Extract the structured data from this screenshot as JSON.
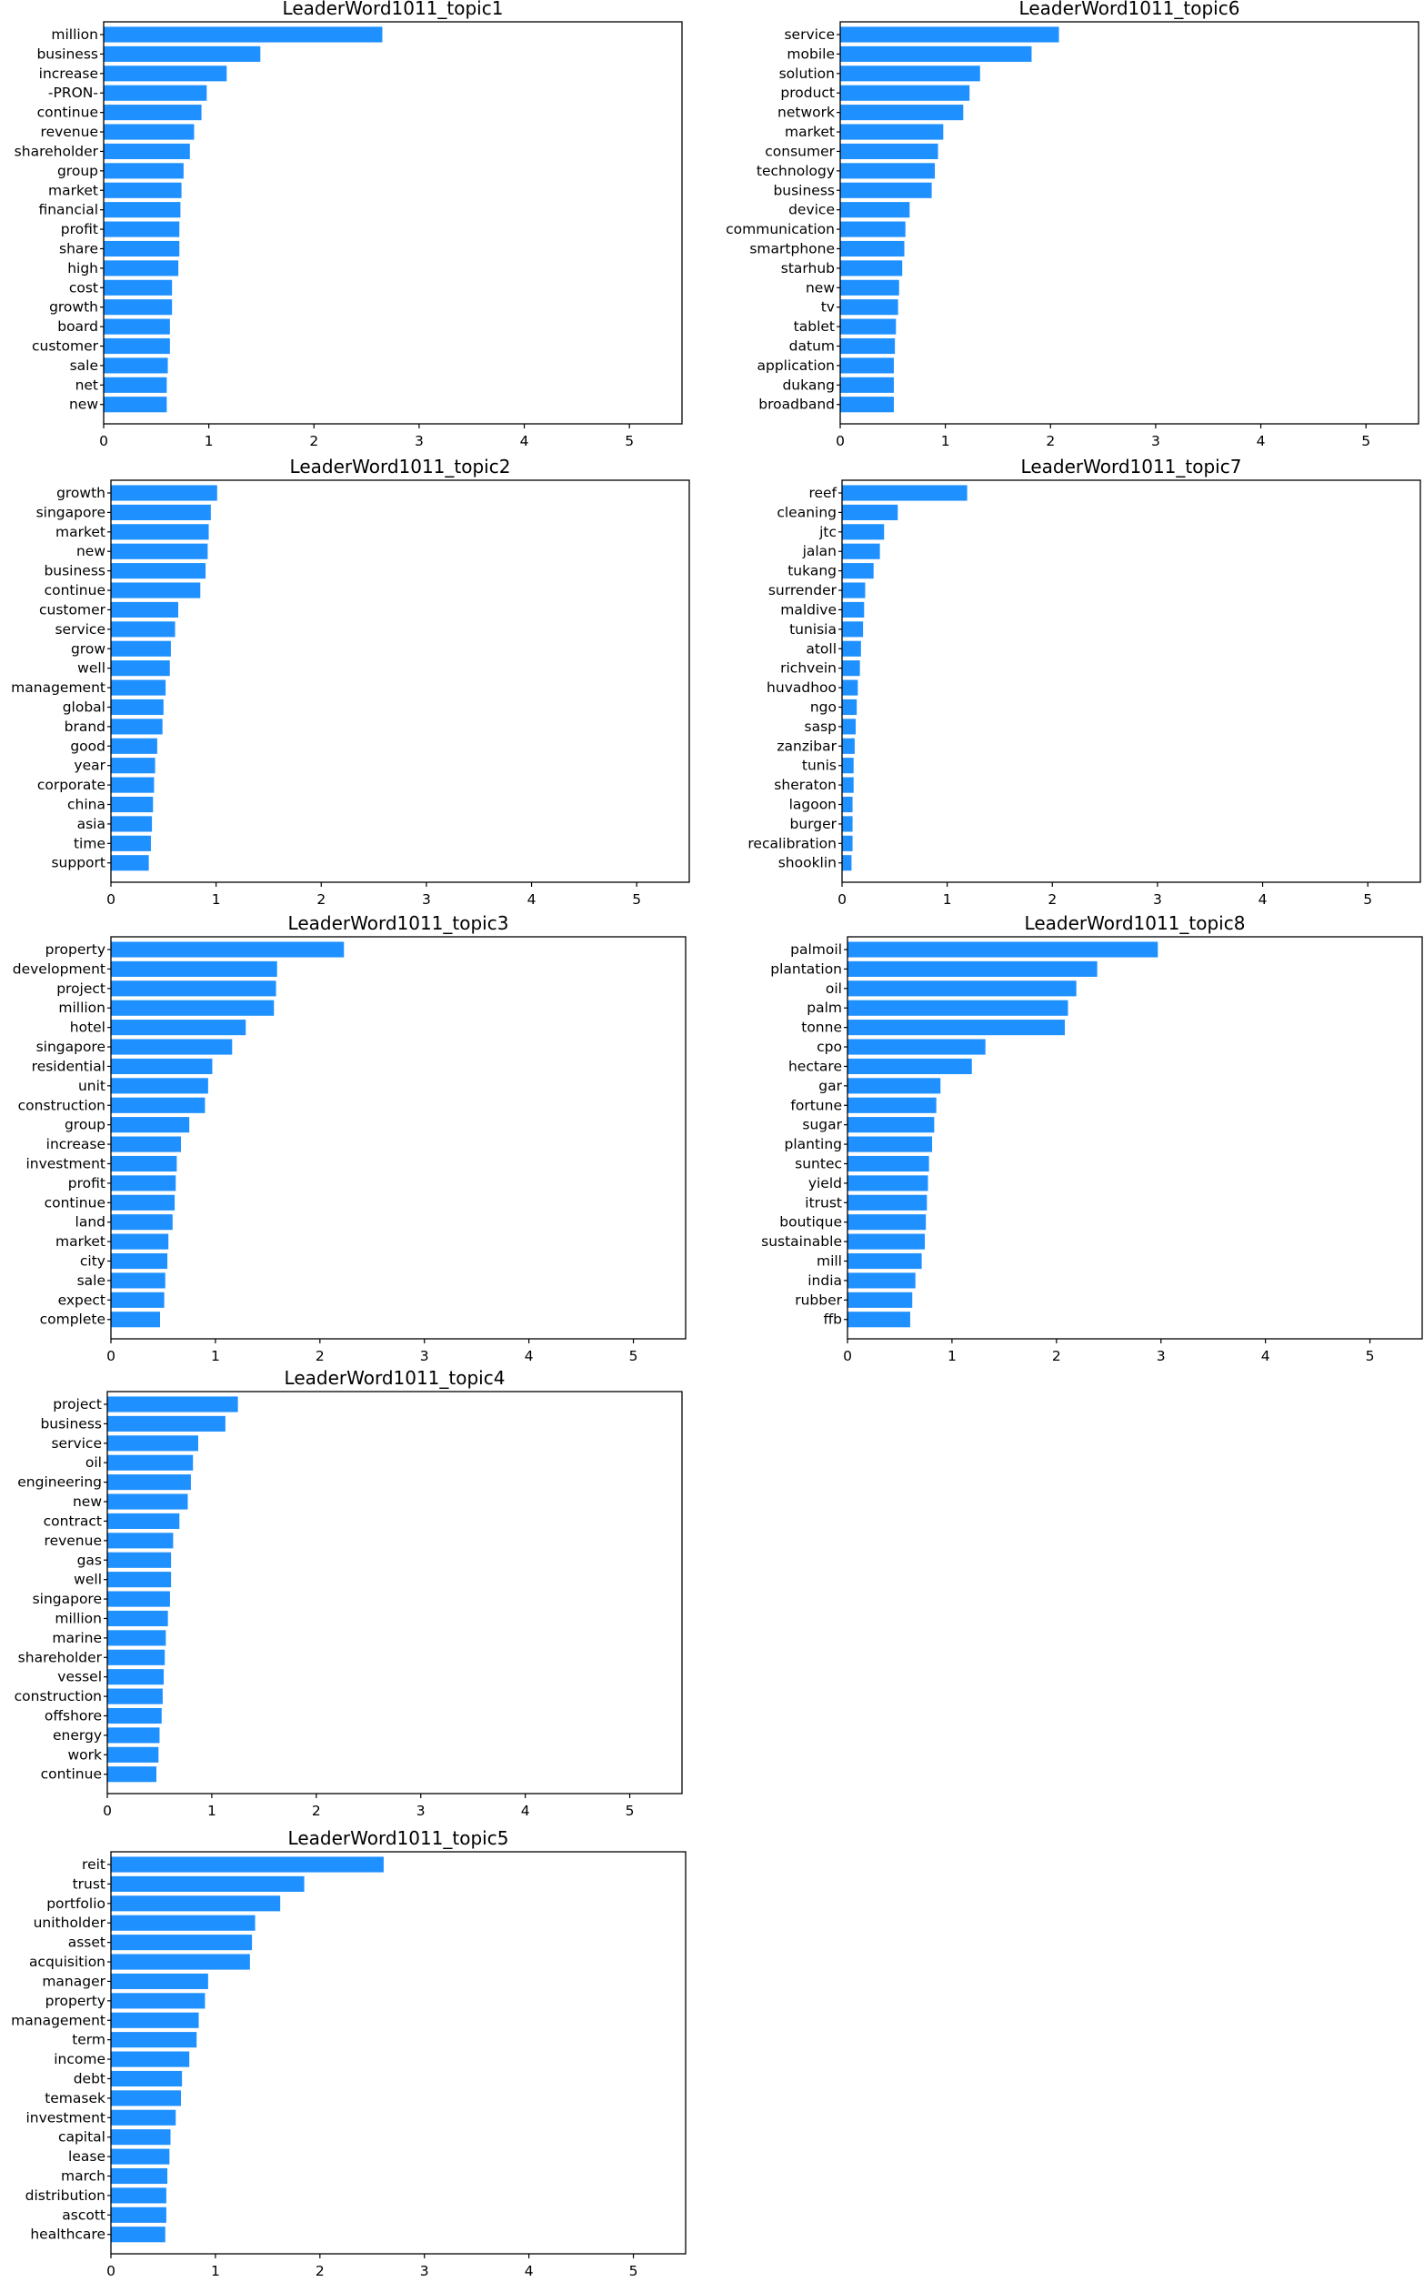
{
  "chart_data": [
    {
      "type": "bar",
      "orientation": "horizontal",
      "title": "LeaderWord1011_topic1",
      "xlim": [
        0,
        5.5
      ],
      "xticks": [
        "0",
        "1",
        "2",
        "3",
        "4",
        "5"
      ],
      "bar_color": "#1e90ff",
      "categories": [
        "million",
        "business",
        "increase",
        "-PRON-",
        "continue",
        "revenue",
        "shareholder",
        "group",
        "market",
        "financial",
        "profit",
        "share",
        "high",
        "cost",
        "growth",
        "board",
        "customer",
        "sale",
        "net",
        "new"
      ],
      "values": [
        2.65,
        1.49,
        1.17,
        0.98,
        0.93,
        0.86,
        0.82,
        0.76,
        0.74,
        0.73,
        0.72,
        0.72,
        0.71,
        0.65,
        0.65,
        0.63,
        0.63,
        0.61,
        0.6,
        0.6
      ]
    },
    {
      "type": "bar",
      "orientation": "horizontal",
      "title": "LeaderWord1011_topic6",
      "xlim": [
        0,
        5.5
      ],
      "xticks": [
        "0",
        "1",
        "2",
        "3",
        "4",
        "5"
      ],
      "bar_color": "#1e90ff",
      "categories": [
        "service",
        "mobile",
        "solution",
        "product",
        "network",
        "market",
        "consumer",
        "technology",
        "business",
        "device",
        "communication",
        "smartphone",
        "starhub",
        "new",
        "tv",
        "tablet",
        "datum",
        "application",
        "dukang",
        "broadband"
      ],
      "values": [
        2.08,
        1.82,
        1.33,
        1.23,
        1.17,
        0.98,
        0.93,
        0.9,
        0.87,
        0.66,
        0.62,
        0.61,
        0.59,
        0.56,
        0.55,
        0.53,
        0.52,
        0.51,
        0.51,
        0.51
      ]
    },
    {
      "type": "bar",
      "orientation": "horizontal",
      "title": "LeaderWord1011_topic2",
      "xlim": [
        0,
        5.5
      ],
      "xticks": [
        "0",
        "1",
        "2",
        "3",
        "4",
        "5"
      ],
      "bar_color": "#1e90ff",
      "categories": [
        "growth",
        "singapore",
        "market",
        "new",
        "business",
        "continue",
        "customer",
        "service",
        "grow",
        "well",
        "management",
        "global",
        "brand",
        "good",
        "year",
        "corporate",
        "china",
        "asia",
        "time",
        "support"
      ],
      "values": [
        1.01,
        0.95,
        0.93,
        0.92,
        0.9,
        0.85,
        0.64,
        0.61,
        0.57,
        0.56,
        0.52,
        0.5,
        0.49,
        0.44,
        0.42,
        0.41,
        0.4,
        0.39,
        0.38,
        0.36
      ]
    },
    {
      "type": "bar",
      "orientation": "horizontal",
      "title": "LeaderWord1011_topic7",
      "xlim": [
        0,
        5.5
      ],
      "xticks": [
        "0",
        "1",
        "2",
        "3",
        "4",
        "5"
      ],
      "bar_color": "#1e90ff",
      "categories": [
        "reef",
        "cleaning",
        "jtc",
        "jalan",
        "tukang",
        "surrender",
        "maldive",
        "tunisia",
        "atoll",
        "richvein",
        "huvadhoo",
        "ngo",
        "sasp",
        "zanzibar",
        "tunis",
        "sheraton",
        "lagoon",
        "burger",
        "recalibration",
        "shooklin"
      ],
      "values": [
        1.19,
        0.53,
        0.4,
        0.36,
        0.3,
        0.22,
        0.21,
        0.2,
        0.18,
        0.17,
        0.15,
        0.14,
        0.13,
        0.12,
        0.11,
        0.11,
        0.1,
        0.1,
        0.1,
        0.09
      ]
    },
    {
      "type": "bar",
      "orientation": "horizontal",
      "title": "LeaderWord1011_topic3",
      "xlim": [
        0,
        5.5
      ],
      "xticks": [
        "0",
        "1",
        "2",
        "3",
        "4",
        "5"
      ],
      "bar_color": "#1e90ff",
      "categories": [
        "property",
        "development",
        "project",
        "million",
        "hotel",
        "singapore",
        "residential",
        "unit",
        "construction",
        "group",
        "increase",
        "investment",
        "profit",
        "continue",
        "land",
        "market",
        "city",
        "sale",
        "expect",
        "complete"
      ],
      "values": [
        2.23,
        1.59,
        1.58,
        1.56,
        1.29,
        1.16,
        0.97,
        0.93,
        0.9,
        0.75,
        0.67,
        0.63,
        0.62,
        0.61,
        0.59,
        0.55,
        0.54,
        0.52,
        0.51,
        0.47
      ]
    },
    {
      "type": "bar",
      "orientation": "horizontal",
      "title": "LeaderWord1011_topic8",
      "xlim": [
        0,
        5.5
      ],
      "xticks": [
        "0",
        "1",
        "2",
        "3",
        "4",
        "5"
      ],
      "bar_color": "#1e90ff",
      "categories": [
        "palmoil",
        "plantation",
        "oil",
        "palm",
        "tonne",
        "cpo",
        "hectare",
        "gar",
        "fortune",
        "sugar",
        "planting",
        "suntec",
        "yield",
        "itrust",
        "boutique",
        "sustainable",
        "mill",
        "india",
        "rubber",
        "ffb"
      ],
      "values": [
        2.97,
        2.39,
        2.19,
        2.11,
        2.08,
        1.32,
        1.19,
        0.89,
        0.85,
        0.83,
        0.81,
        0.78,
        0.77,
        0.76,
        0.75,
        0.74,
        0.71,
        0.65,
        0.62,
        0.6
      ]
    },
    {
      "type": "bar",
      "orientation": "horizontal",
      "title": "LeaderWord1011_topic4",
      "xlim": [
        0,
        5.5
      ],
      "xticks": [
        "0",
        "1",
        "2",
        "3",
        "4",
        "5"
      ],
      "bar_color": "#1e90ff",
      "categories": [
        "project",
        "business",
        "service",
        "oil",
        "engineering",
        "new",
        "contract",
        "revenue",
        "gas",
        "well",
        "singapore",
        "million",
        "marine",
        "shareholder",
        "vessel",
        "construction",
        "offshore",
        "energy",
        "work",
        "continue"
      ],
      "values": [
        1.25,
        1.13,
        0.87,
        0.82,
        0.8,
        0.77,
        0.69,
        0.63,
        0.61,
        0.61,
        0.6,
        0.58,
        0.56,
        0.55,
        0.54,
        0.53,
        0.52,
        0.5,
        0.49,
        0.47
      ]
    },
    {
      "type": "bar",
      "orientation": "horizontal",
      "title": "LeaderWord1011_topic5",
      "xlim": [
        0,
        5.5
      ],
      "xticks": [
        "0",
        "1",
        "2",
        "3",
        "4",
        "5"
      ],
      "bar_color": "#1e90ff",
      "categories": [
        "reit",
        "trust",
        "portfolio",
        "unitholder",
        "asset",
        "acquisition",
        "manager",
        "property",
        "management",
        "term",
        "income",
        "debt",
        "temasek",
        "investment",
        "capital",
        "lease",
        "march",
        "distribution",
        "ascott",
        "healthcare"
      ],
      "values": [
        2.61,
        1.85,
        1.62,
        1.38,
        1.35,
        1.33,
        0.93,
        0.9,
        0.84,
        0.82,
        0.75,
        0.68,
        0.67,
        0.62,
        0.57,
        0.56,
        0.54,
        0.53,
        0.53,
        0.52
      ]
    }
  ]
}
